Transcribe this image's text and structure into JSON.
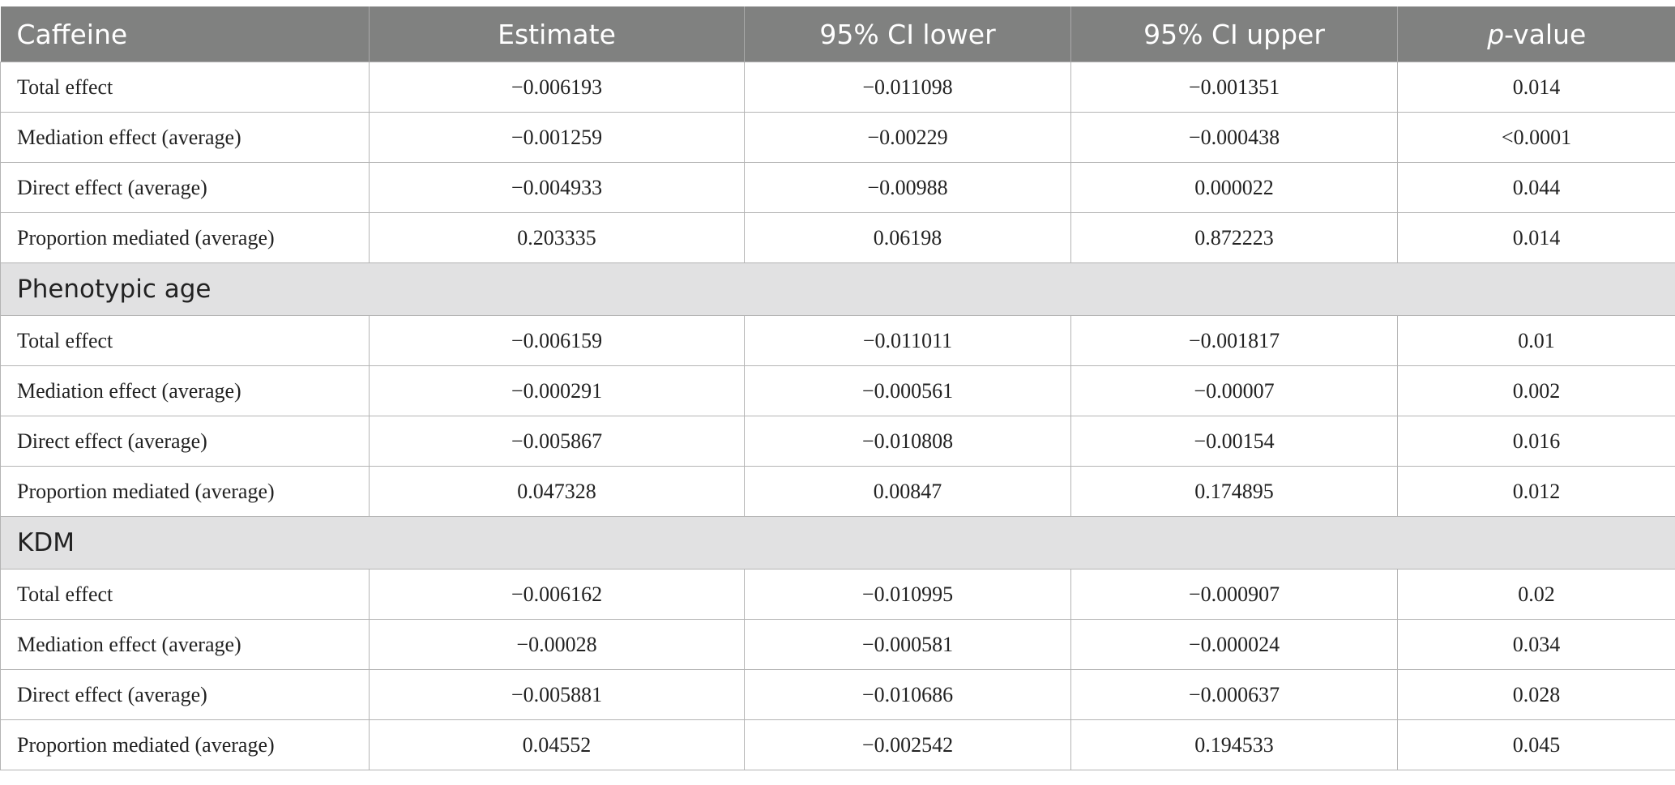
{
  "header": {
    "col0": "Caffeine",
    "col1": "Estimate",
    "col2": "95% CI lower",
    "col3": "95% CI upper",
    "col4_italic": "p",
    "col4_rest": "-value"
  },
  "groups": [
    {
      "rows": [
        [
          "Total effect",
          "−0.006193",
          "−0.011098",
          "−0.001351",
          "0.014"
        ],
        [
          "Mediation effect (average)",
          "−0.001259",
          "−0.00229",
          "−0.000438",
          "<0.0001"
        ],
        [
          "Direct effect (average)",
          "−0.004933",
          "−0.00988",
          "0.000022",
          "0.044"
        ],
        [
          "Proportion mediated (average)",
          "0.203335",
          "0.06198",
          "0.872223",
          "0.014"
        ]
      ]
    },
    {
      "title": "Phenotypic age",
      "rows": [
        [
          "Total effect",
          "−0.006159",
          "−0.011011",
          "−0.001817",
          "0.01"
        ],
        [
          "Mediation effect (average)",
          "−0.000291",
          "−0.000561",
          "−0.00007",
          "0.002"
        ],
        [
          "Direct effect (average)",
          "−0.005867",
          "−0.010808",
          "−0.00154",
          "0.016"
        ],
        [
          "Proportion mediated (average)",
          "0.047328",
          "0.00847",
          "0.174895",
          "0.012"
        ]
      ]
    },
    {
      "title": "KDM",
      "rows": [
        [
          "Total effect",
          "−0.006162",
          "−0.010995",
          "−0.000907",
          "0.02"
        ],
        [
          "Mediation effect (average)",
          "−0.00028",
          "−0.000581",
          "−0.000024",
          "0.034"
        ],
        [
          "Direct effect (average)",
          "−0.005881",
          "−0.010686",
          "−0.000637",
          "0.028"
        ],
        [
          "Proportion mediated (average)",
          "0.04552",
          "−0.002542",
          "0.194533",
          "0.045"
        ]
      ]
    }
  ]
}
